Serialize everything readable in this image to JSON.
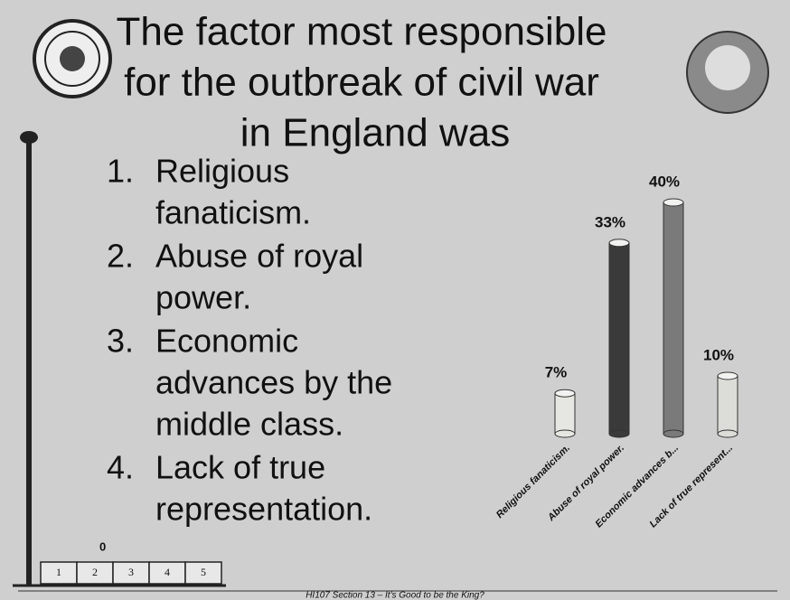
{
  "chart_data": {
    "type": "bar",
    "title": [
      "The factor most responsible",
      "for the outbreak of civil war",
      "in England was"
    ],
    "options": [
      {
        "number": "1.",
        "lines": [
          "Religious",
          "fanaticism."
        ]
      },
      {
        "number": "2.",
        "lines": [
          "Abuse of royal",
          "power."
        ]
      },
      {
        "number": "3.",
        "lines": [
          "Economic",
          "advances by the",
          "middle class."
        ]
      },
      {
        "number": "4.",
        "lines": [
          "Lack of true",
          "representation."
        ]
      }
    ],
    "categories": [
      "Religious fanaticism.",
      "Abuse of royal power.",
      "Economic advances b...",
      "Lack of true represent..."
    ],
    "values": [
      7,
      33,
      40,
      10
    ],
    "value_labels": [
      "7%",
      "33%",
      "40%",
      "10%"
    ],
    "colors": [
      "#e6e6e2",
      "#3a3a3a",
      "#7a7a7a",
      "#dcdcd8"
    ],
    "counter": 0,
    "response_boxes": [
      1,
      2,
      3,
      4,
      5
    ],
    "footer": "HI107 Section 13 – It's Good to be the King?"
  }
}
